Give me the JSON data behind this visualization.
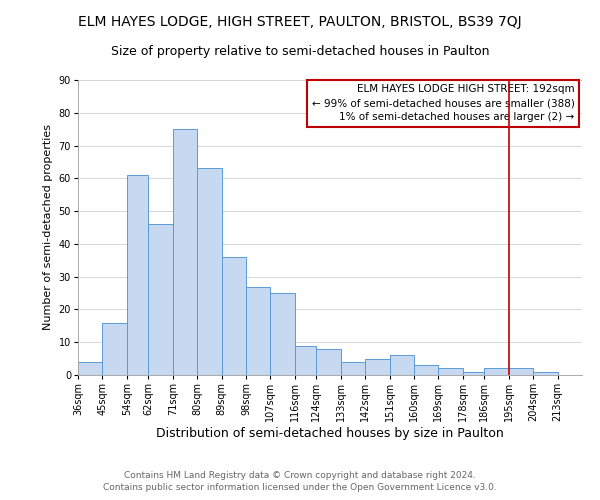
{
  "title": "ELM HAYES LODGE, HIGH STREET, PAULTON, BRISTOL, BS39 7QJ",
  "subtitle": "Size of property relative to semi-detached houses in Paulton",
  "xlabel": "Distribution of semi-detached houses by size in Paulton",
  "ylabel": "Number of semi-detached properties",
  "footer1": "Contains HM Land Registry data © Crown copyright and database right 2024.",
  "footer2": "Contains public sector information licensed under the Open Government Licence v3.0.",
  "bar_left_edges": [
    36,
    45,
    54,
    62,
    71,
    80,
    89,
    98,
    107,
    116,
    124,
    133,
    142,
    151,
    160,
    169,
    178,
    186,
    204
  ],
  "bar_widths": [
    9,
    9,
    8,
    9,
    9,
    9,
    9,
    9,
    9,
    8,
    9,
    9,
    9,
    9,
    9,
    9,
    8,
    18,
    9
  ],
  "bar_heights": [
    4,
    16,
    61,
    46,
    75,
    63,
    36,
    27,
    25,
    9,
    8,
    4,
    5,
    6,
    3,
    2,
    1,
    2,
    1
  ],
  "bar_color": "#c6d9f0",
  "bar_edge_color": "#5a9bd5",
  "vline_x": 195,
  "vline_color": "#c00000",
  "annotation_text": "ELM HAYES LODGE HIGH STREET: 192sqm\n← 99% of semi-detached houses are smaller (388)\n1% of semi-detached houses are larger (2) →",
  "ylim": [
    0,
    90
  ],
  "yticks": [
    0,
    10,
    20,
    30,
    40,
    50,
    60,
    70,
    80,
    90
  ],
  "xtick_labels": [
    "36sqm",
    "45sqm",
    "54sqm",
    "62sqm",
    "71sqm",
    "80sqm",
    "89sqm",
    "98sqm",
    "107sqm",
    "116sqm",
    "124sqm",
    "133sqm",
    "142sqm",
    "151sqm",
    "160sqm",
    "169sqm",
    "178sqm",
    "186sqm",
    "195sqm",
    "204sqm",
    "213sqm"
  ],
  "xtick_positions": [
    36,
    45,
    54,
    62,
    71,
    80,
    89,
    98,
    107,
    116,
    124,
    133,
    142,
    151,
    160,
    169,
    178,
    186,
    195,
    204,
    213
  ],
  "grid_color": "#d0d0d0",
  "background_color": "#ffffff",
  "title_fontsize": 10,
  "subtitle_fontsize": 9,
  "ylabel_fontsize": 8,
  "xlabel_fontsize": 9,
  "footer_fontsize": 6.5,
  "annotation_fontsize": 7.5,
  "tick_fontsize": 7
}
